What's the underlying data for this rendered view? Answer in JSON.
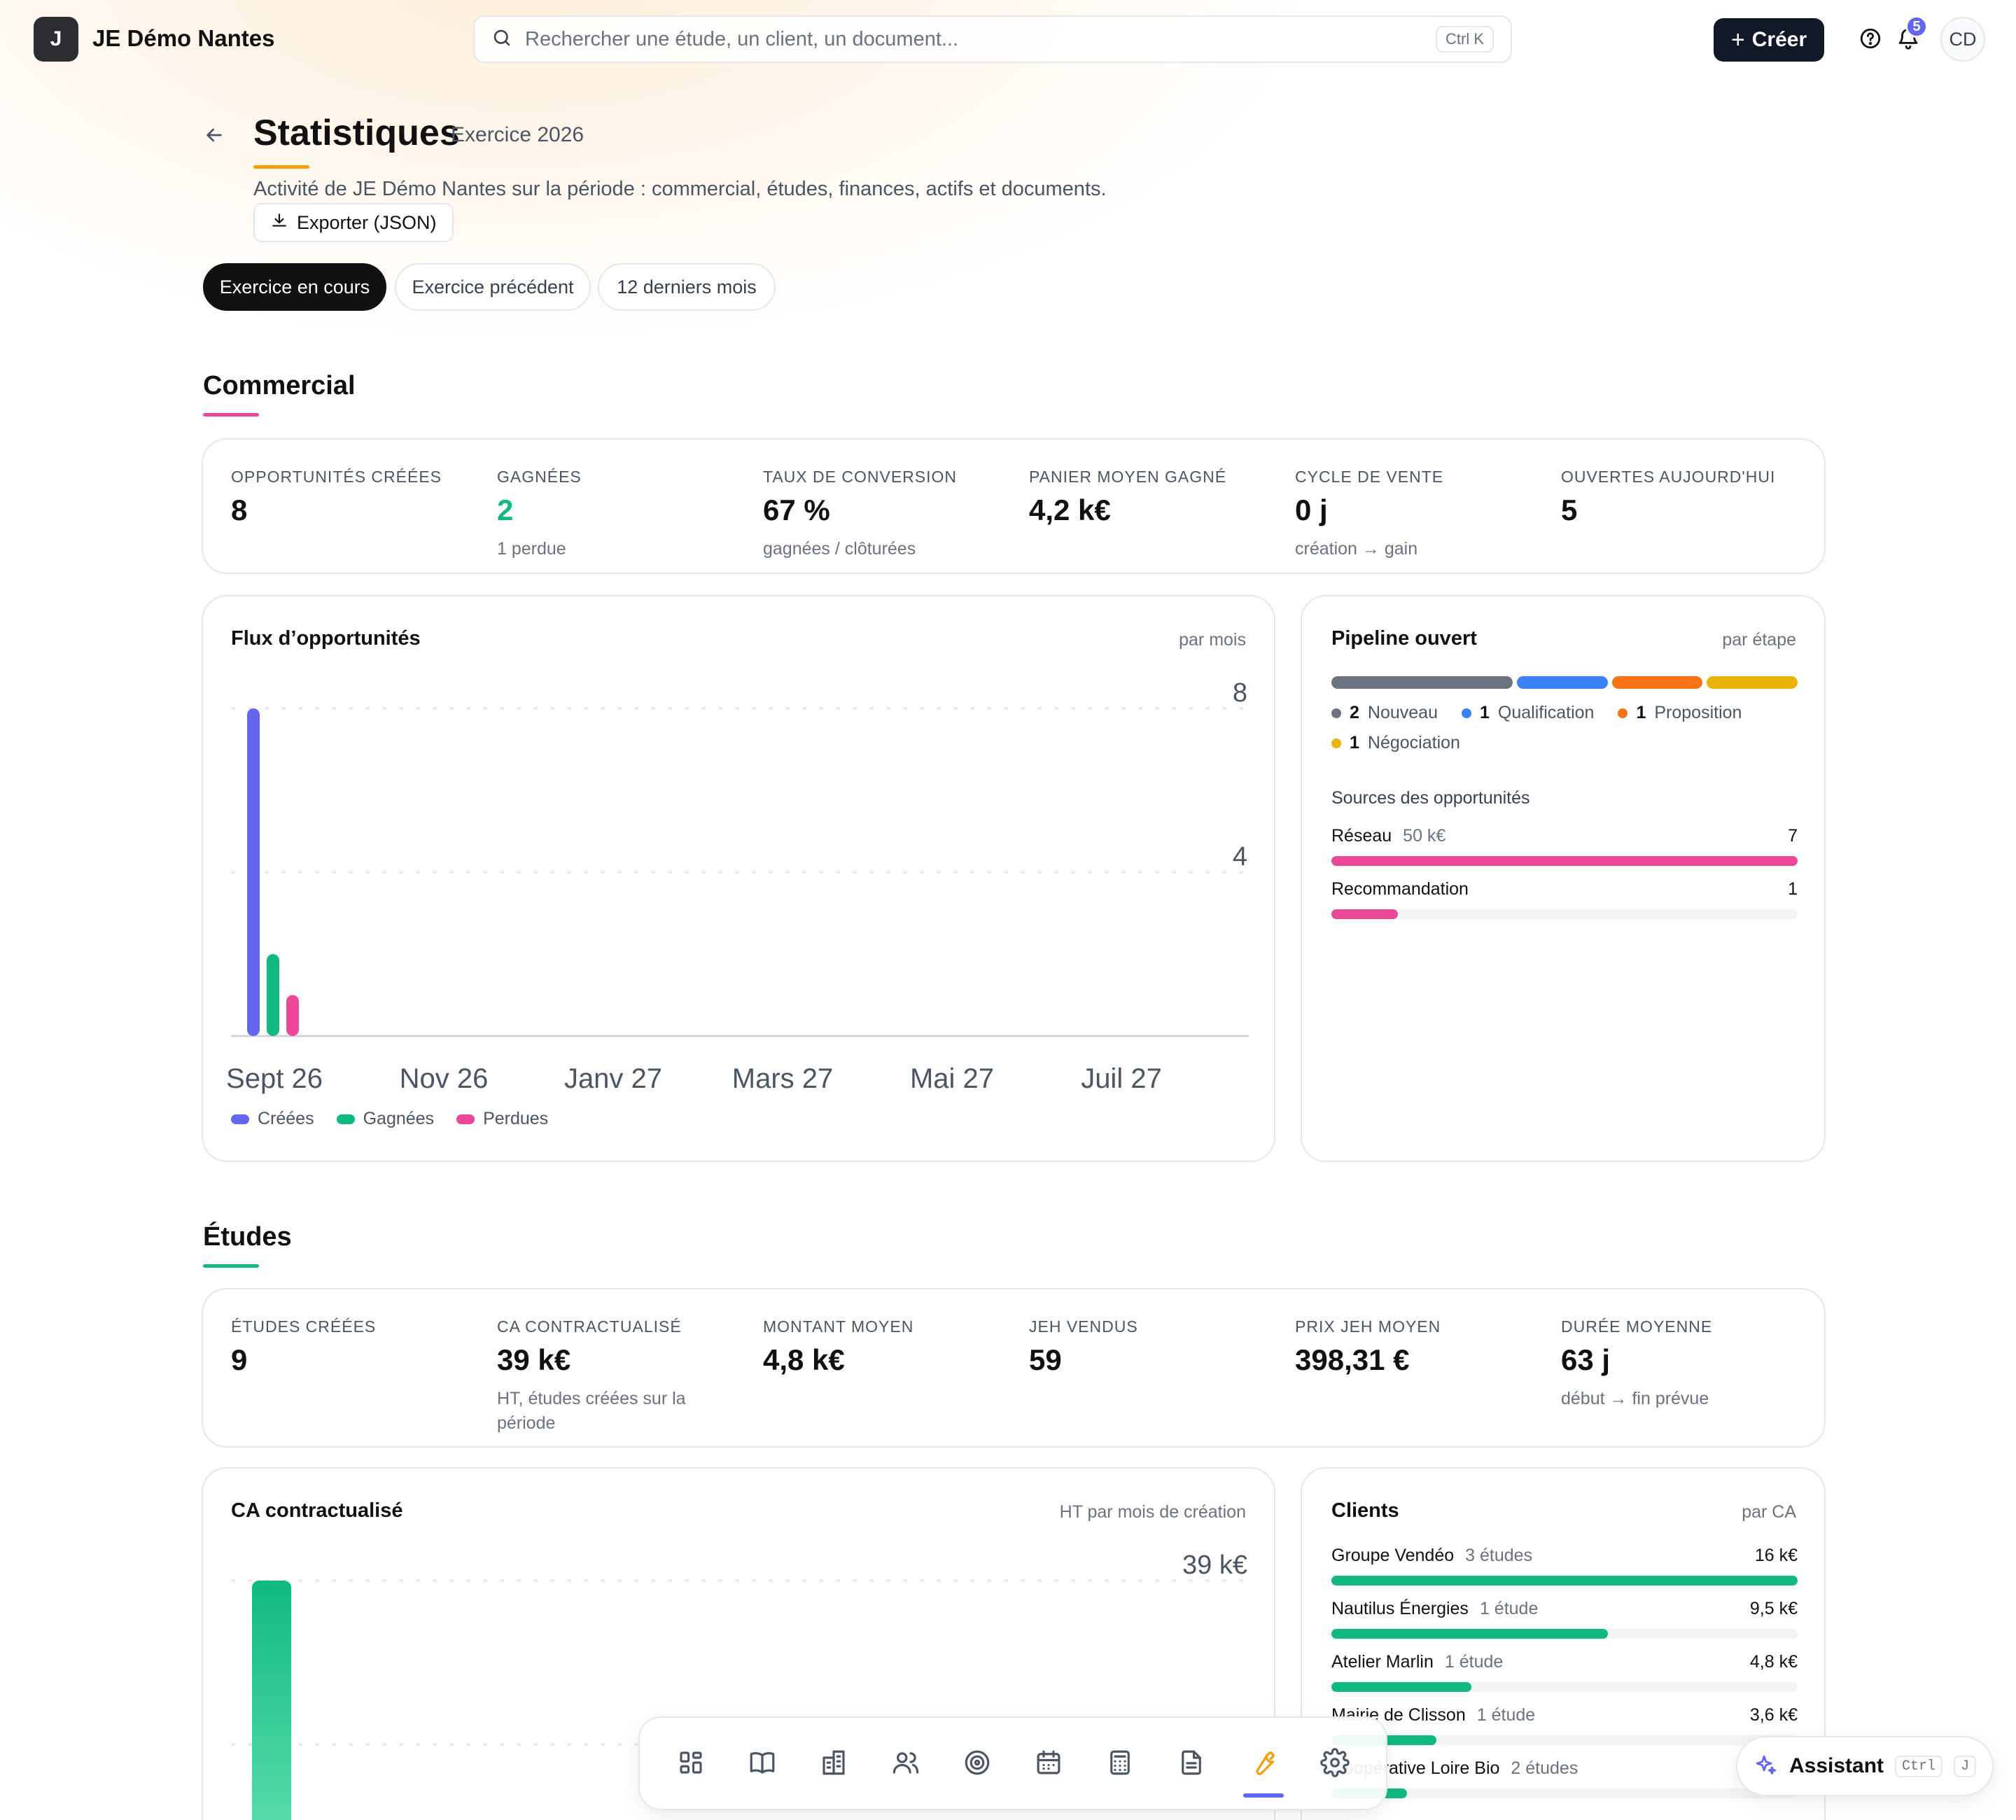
{
  "app": {
    "logo_letter": "J",
    "title": "JE Démo Nantes"
  },
  "search": {
    "placeholder": "Rechercher une étude, un client, un document...",
    "shortcut": "Ctrl K"
  },
  "topbar": {
    "create_label": "Créer",
    "notifications_count": "5",
    "avatar_initials": "CD"
  },
  "header": {
    "title": "Statistiques",
    "period_label": "Exercice 2026",
    "description": "Activité de JE Démo Nantes sur la période : commercial, études, finances, actifs et documents.",
    "export_label": "Exporter (JSON)"
  },
  "period_filters": [
    {
      "label": "Exercice en cours",
      "active": true
    },
    {
      "label": "Exercice précédent",
      "active": false
    },
    {
      "label": "12 derniers mois",
      "active": false
    }
  ],
  "colors": {
    "commercial": "#ec4899",
    "etudes": "#10b981",
    "accent": "#6366f1",
    "title_underline": "#f59e0b"
  },
  "commercial": {
    "title": "Commercial",
    "kpis": [
      {
        "label": "OPPORTUNITÉS CRÉÉES",
        "value": "8",
        "sub": ""
      },
      {
        "label": "GAGNÉES",
        "value": "2",
        "sub": "1 perdue",
        "value_color": "#10b981"
      },
      {
        "label": "TAUX DE CONVERSION",
        "value": "67 %",
        "sub": "gagnées / clôturées"
      },
      {
        "label": "PANIER MOYEN GAGNÉ",
        "value": "4,2 k€",
        "sub": ""
      },
      {
        "label": "CYCLE DE VENTE",
        "value": "0 j",
        "sub": "création → gain"
      },
      {
        "label": "OUVERTES AUJOURD'HUI",
        "value": "5",
        "sub": ""
      }
    ],
    "flux": {
      "title": "Flux d’opportunités",
      "hint": "par mois"
    },
    "pipeline": {
      "title": "Pipeline ouvert",
      "hint": "par étape",
      "stages": [
        {
          "count": "2",
          "label": "Nouveau",
          "value": 2,
          "color": "#6b7280"
        },
        {
          "count": "1",
          "label": "Qualification",
          "value": 1,
          "color": "#3b82f6"
        },
        {
          "count": "1",
          "label": "Proposition",
          "value": 1,
          "color": "#f97316"
        },
        {
          "count": "1",
          "label": "Négociation",
          "value": 1,
          "color": "#eab308"
        }
      ],
      "sources_title": "Sources des opportunités",
      "sources": [
        {
          "name": "Réseau",
          "amount": "50 k€",
          "count": "7",
          "value": 7
        },
        {
          "name": "Recommandation",
          "amount": "",
          "count": "1",
          "value": 1
        }
      ]
    }
  },
  "etudes": {
    "title": "Études",
    "kpis": [
      {
        "label": "ÉTUDES CRÉÉES",
        "value": "9",
        "sub": ""
      },
      {
        "label": "CA CONTRACTUALISÉ",
        "value": "39 k€",
        "sub": "HT, études créées sur la période"
      },
      {
        "label": "MONTANT MOYEN",
        "value": "4,8 k€",
        "sub": ""
      },
      {
        "label": "JEH VENDUS",
        "value": "59",
        "sub": ""
      },
      {
        "label": "PRIX JEH MOYEN",
        "value": "398,31 €",
        "sub": ""
      },
      {
        "label": "DURÉE MOYENNE",
        "value": "63 j",
        "sub": "début → fin prévue"
      }
    ],
    "ca": {
      "title": "CA contractualisé",
      "hint": "HT par mois de création"
    },
    "clients": {
      "title": "Clients",
      "hint": "par CA",
      "items": [
        {
          "name": "Groupe Vendéo",
          "detail": "3 études",
          "amount": "16 k€",
          "value": 16
        },
        {
          "name": "Nautilus Énergies",
          "detail": "1 étude",
          "amount": "9,5 k€",
          "value": 9.5
        },
        {
          "name": "Atelier Marlin",
          "detail": "1 étude",
          "amount": "4,8 k€",
          "value": 4.8
        },
        {
          "name": "Mairie de Clisson",
          "detail": "1 étude",
          "amount": "3,6 k€",
          "value": 3.6
        },
        {
          "name": "Coopérative Loire Bio",
          "detail": "2 études",
          "amount": "",
          "value": 2.6
        }
      ]
    }
  },
  "chart_data": [
    {
      "type": "bar",
      "title": "Flux d’opportunités",
      "categories": [
        "Sept 26",
        "Nov 26",
        "Janv 27",
        "Mars 27",
        "Mai 27",
        "Juil 27"
      ],
      "yticks": [
        "8",
        "4"
      ],
      "ylim": [
        0,
        8
      ],
      "series": [
        {
          "name": "Créées",
          "color": "#6366f1",
          "values": [
            8,
            0,
            0,
            0,
            0,
            0
          ]
        },
        {
          "name": "Gagnées",
          "color": "#10b981",
          "values": [
            2,
            0,
            0,
            0,
            0,
            0
          ]
        },
        {
          "name": "Perdues",
          "color": "#ec4899",
          "values": [
            1,
            0,
            0,
            0,
            0,
            0
          ]
        }
      ],
      "legend": "bottom-left",
      "grid": true
    },
    {
      "type": "bar",
      "title": "CA contractualisé",
      "yticks": [
        "39 k€"
      ],
      "ylim": [
        0,
        39
      ],
      "series": [
        {
          "name": "CA",
          "color": "#10b981",
          "values": [
            39
          ]
        }
      ],
      "grid": true
    }
  ],
  "dock": {
    "items": [
      {
        "name": "dashboard-icon"
      },
      {
        "name": "book-icon"
      },
      {
        "name": "building-icon"
      },
      {
        "name": "users-icon"
      },
      {
        "name": "target-icon"
      },
      {
        "name": "calendar-icon"
      },
      {
        "name": "calculator-icon"
      },
      {
        "name": "document-icon"
      },
      {
        "name": "wrench-icon",
        "active": true
      },
      {
        "name": "gear-icon"
      }
    ]
  },
  "assistant": {
    "label": "Assistant",
    "key1": "Ctrl",
    "key2": "J"
  }
}
